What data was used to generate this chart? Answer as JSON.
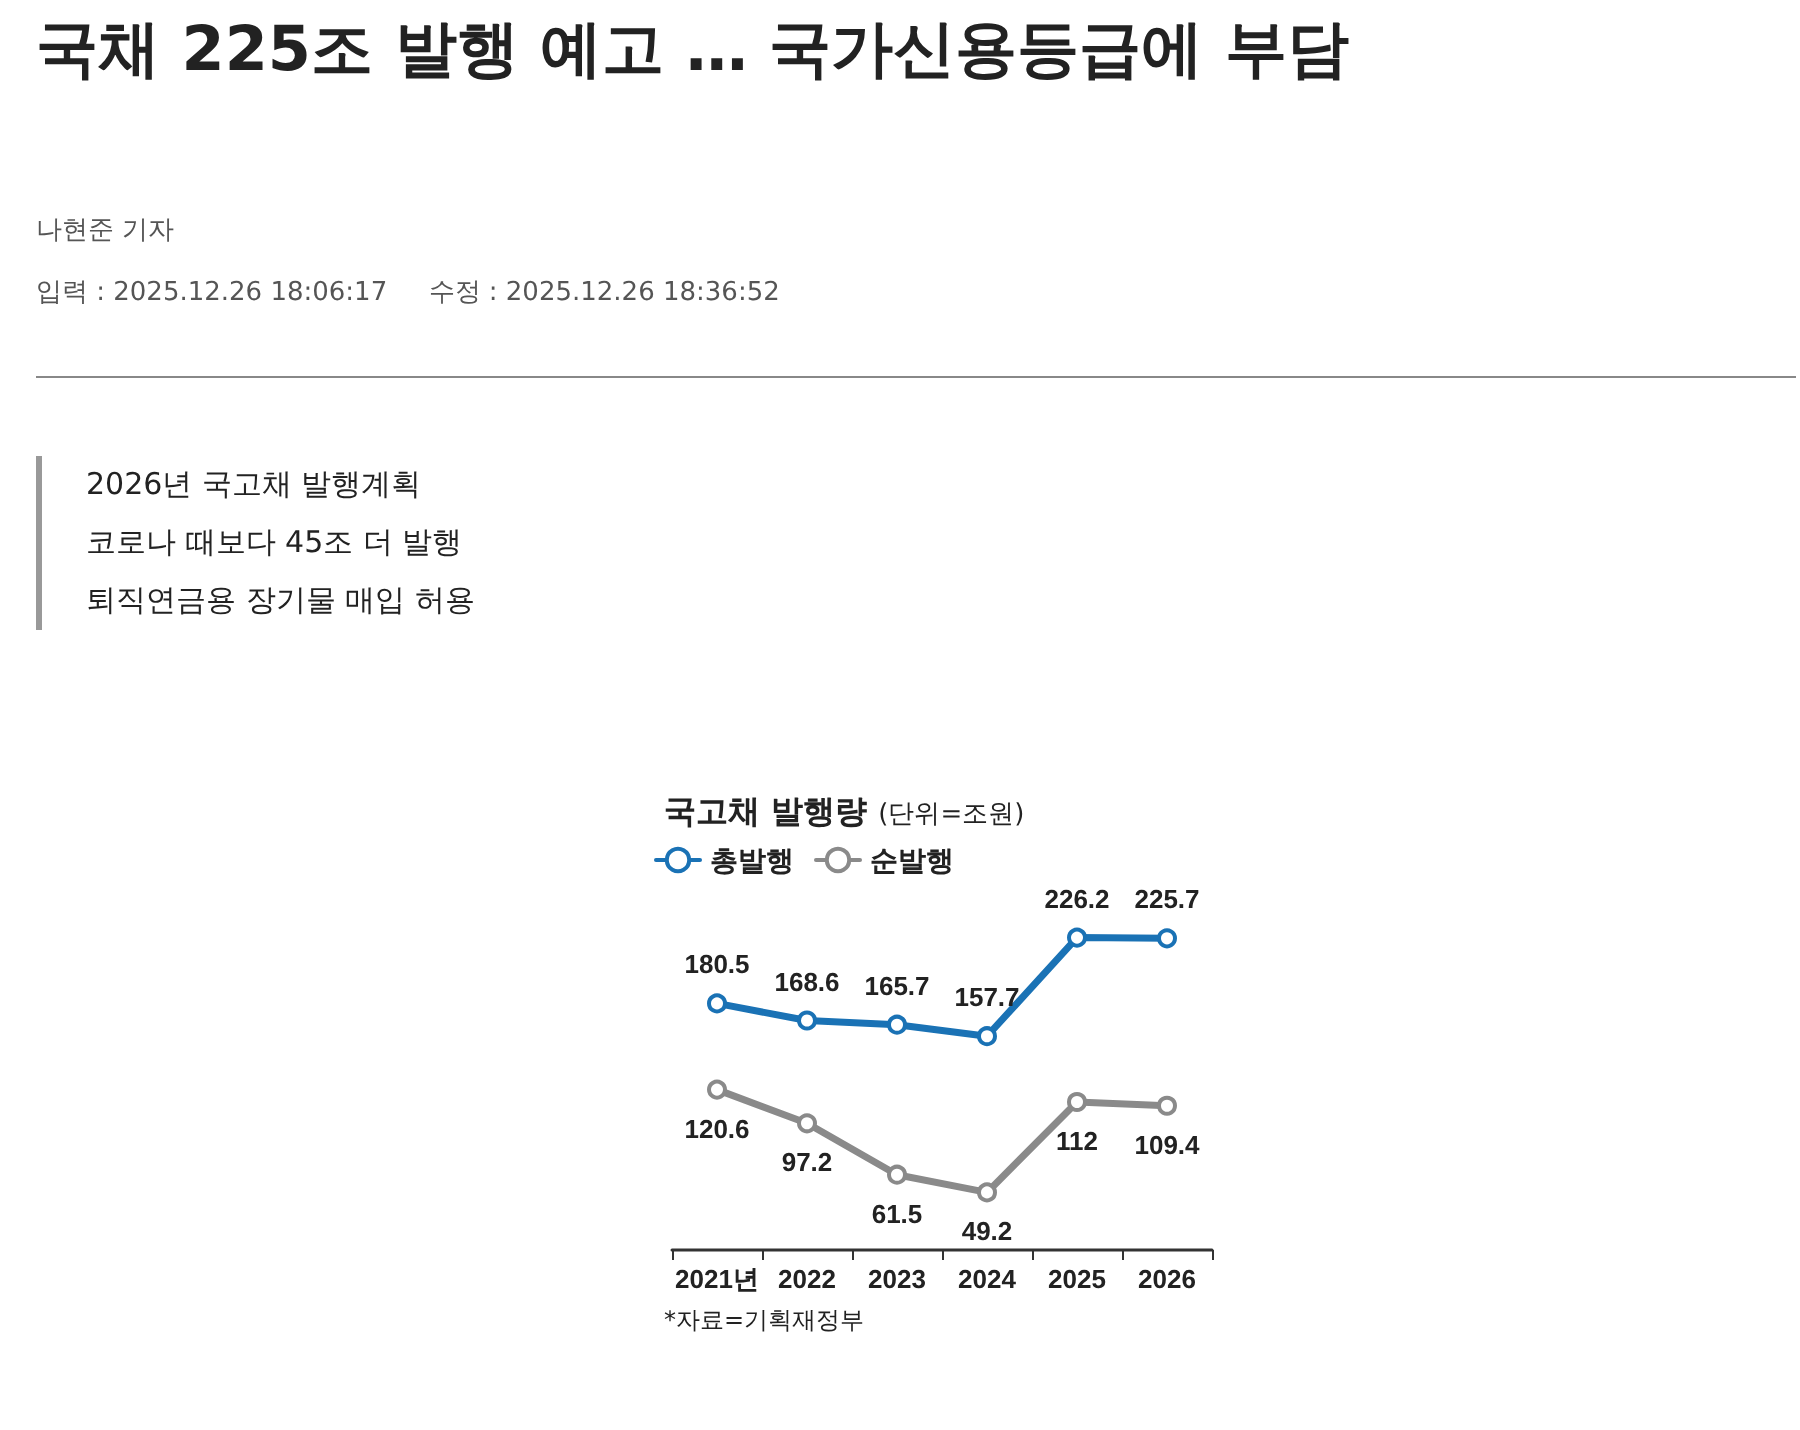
{
  "chart_data": {
    "type": "line",
    "title": "국채 225조 발행 예고 … 국가신용등급에 부담",
    "subtitle": "국고채 발행량",
    "annotations": [
      "나현준 기자",
      "입력 : 2025.12.26 18:06:17",
      "수정 : 2025.12.26 18:36:52",
      "2026년 국고채 발행계획",
      "코로나 때보다 45조 더 발행",
      "퇴직연금용 장기물 매입 허용",
      "(단위=조원)",
      "*자료=기획재정부"
    ],
    "categories": [
      "2021년",
      "2022",
      "2023",
      "2024",
      "2025",
      "2026"
    ],
    "series": [
      {
        "name": "총발행",
        "color": "#1a72b5",
        "values": [
          180.5,
          168.6,
          165.7,
          157.7,
          226.2,
          225.7
        ]
      },
      {
        "name": "순발행",
        "color": "#8a8a8a",
        "values": [
          120.6,
          97.2,
          61.5,
          49.2,
          112,
          109.4
        ]
      }
    ],
    "data_labels": true,
    "marker": "circle",
    "line_style": "solid",
    "legend": "top left",
    "grid": false
  }
}
